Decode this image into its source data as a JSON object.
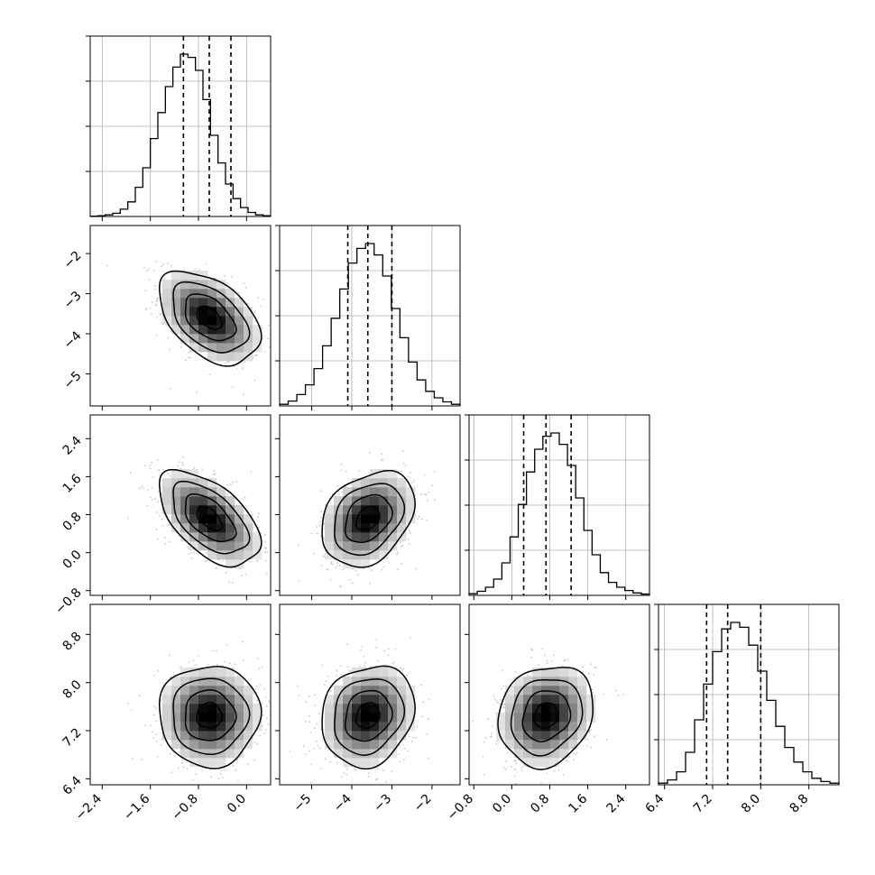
{
  "chart_data": {
    "type": "corner",
    "grid": true,
    "parameters": [
      {
        "name": "",
        "range": [
          -2.6,
          0.4
        ],
        "ticks": [
          "−2.4",
          "−1.6",
          "−0.8",
          "0.0"
        ],
        "tick_values": [
          -2.4,
          -1.6,
          -0.8,
          0.0
        ],
        "quantiles": [
          -1.05,
          -0.62,
          -0.26
        ],
        "hist": [
          0.002,
          0.005,
          0.01,
          0.02,
          0.045,
          0.09,
          0.18,
          0.3,
          0.48,
          0.64,
          0.8,
          0.92,
          1.0,
          0.98,
          0.9,
          0.72,
          0.5,
          0.33,
          0.2,
          0.11,
          0.055,
          0.025,
          0.01,
          0.005
        ]
      },
      {
        "name": "",
        "range": [
          -5.8,
          -1.3
        ],
        "ticks": [
          "−5",
          "−4",
          "−3",
          "−2"
        ],
        "tick_values": [
          -5,
          -4,
          -3,
          -2
        ],
        "quantiles": [
          -4.1,
          -3.6,
          -3.0
        ],
        "hist": [
          0.01,
          0.03,
          0.07,
          0.13,
          0.23,
          0.37,
          0.54,
          0.72,
          0.88,
          0.97,
          1.0,
          0.93,
          0.8,
          0.6,
          0.42,
          0.27,
          0.16,
          0.09,
          0.05,
          0.025,
          0.01
        ]
      },
      {
        "name": "",
        "range": [
          -0.9,
          2.9
        ],
        "ticks": [
          "−0.8",
          "0.0",
          "0.8",
          "1.6",
          "2.4"
        ],
        "tick_values": [
          -0.8,
          0.0,
          0.8,
          1.6,
          2.4
        ],
        "quantiles": [
          0.25,
          0.72,
          1.25
        ],
        "hist": [
          0.01,
          0.025,
          0.05,
          0.1,
          0.2,
          0.36,
          0.56,
          0.76,
          0.9,
          0.98,
          1.0,
          0.93,
          0.8,
          0.6,
          0.4,
          0.25,
          0.14,
          0.08,
          0.05,
          0.03,
          0.015,
          0.008
        ]
      },
      {
        "name": "",
        "range": [
          6.3,
          9.3
        ],
        "ticks": [
          "6.4",
          "7.2",
          "8.0",
          "8.8"
        ],
        "tick_values": [
          6.4,
          7.2,
          8.0,
          8.8
        ],
        "quantiles": [
          7.1,
          7.45,
          8.0
        ],
        "hist": [
          0.01,
          0.03,
          0.08,
          0.2,
          0.4,
          0.62,
          0.82,
          0.96,
          1.0,
          0.97,
          0.86,
          0.7,
          0.52,
          0.36,
          0.23,
          0.14,
          0.08,
          0.04,
          0.02,
          0.01
        ]
      }
    ],
    "pairs": [
      {
        "x": 0,
        "y": 1,
        "mean": [
          -0.62,
          -3.6
        ],
        "sd": [
          0.42,
          0.58
        ],
        "rho": -0.45
      },
      {
        "x": 0,
        "y": 2,
        "mean": [
          -0.62,
          0.72
        ],
        "sd": [
          0.42,
          0.5
        ],
        "rho": -0.55
      },
      {
        "x": 1,
        "y": 2,
        "mean": [
          -3.6,
          0.72
        ],
        "sd": [
          0.58,
          0.5
        ],
        "rho": 0.3
      },
      {
        "x": 0,
        "y": 3,
        "mean": [
          -0.62,
          7.45
        ],
        "sd": [
          0.42,
          0.42
        ],
        "rho": 0.0
      },
      {
        "x": 1,
        "y": 3,
        "mean": [
          -3.6,
          7.45
        ],
        "sd": [
          0.58,
          0.42
        ],
        "rho": 0.15
      },
      {
        "x": 2,
        "y": 3,
        "mean": [
          0.72,
          7.45
        ],
        "sd": [
          0.5,
          0.42
        ],
        "rho": 0.15
      }
    ]
  }
}
